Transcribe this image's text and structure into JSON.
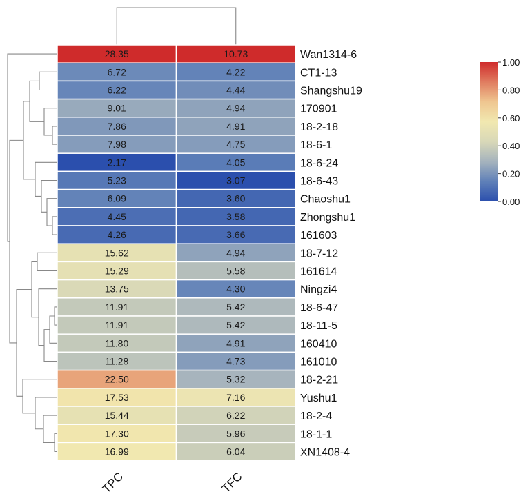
{
  "chart_data": {
    "type": "heatmap",
    "columns": [
      "TPC",
      "TFC"
    ],
    "rows": [
      {
        "name": "Wan1314-6",
        "values": [
          28.35,
          10.73
        ],
        "display": [
          "28.35",
          "10.73"
        ],
        "scaled": [
          1.0,
          1.0
        ]
      },
      {
        "name": "CT1-13",
        "values": [
          6.72,
          4.22
        ],
        "display": [
          "6.72",
          "4.22"
        ],
        "scaled": [
          0.17,
          0.15
        ]
      },
      {
        "name": "Shangshu19",
        "values": [
          6.22,
          4.44
        ],
        "display": [
          "6.22",
          "4.44"
        ],
        "scaled": [
          0.16,
          0.18
        ]
      },
      {
        "name": "170901",
        "values": [
          9.01,
          4.94
        ],
        "display": [
          "9.01",
          "4.94"
        ],
        "scaled": [
          0.26,
          0.24
        ]
      },
      {
        "name": "18-2-18",
        "values": [
          7.86,
          4.91
        ],
        "display": [
          "7.86",
          "4.91"
        ],
        "scaled": [
          0.21,
          0.24
        ]
      },
      {
        "name": "18-6-1",
        "values": [
          7.98,
          4.75
        ],
        "display": [
          "7.98",
          "4.75"
        ],
        "scaled": [
          0.22,
          0.22
        ]
      },
      {
        "name": "18-6-24",
        "values": [
          2.17,
          4.05
        ],
        "display": [
          "2.17",
          "4.05"
        ],
        "scaled": [
          0.0,
          0.13
        ]
      },
      {
        "name": "18-6-43",
        "values": [
          5.23,
          3.07
        ],
        "display": [
          "5.23",
          "3.07"
        ],
        "scaled": [
          0.12,
          0.0
        ]
      },
      {
        "name": "Chaoshu1",
        "values": [
          6.09,
          3.6
        ],
        "display": [
          "6.09",
          "3.60"
        ],
        "scaled": [
          0.15,
          0.07
        ]
      },
      {
        "name": "Zhongshu1",
        "values": [
          4.45,
          3.58
        ],
        "display": [
          "4.45",
          "3.58"
        ],
        "scaled": [
          0.09,
          0.07
        ]
      },
      {
        "name": "161603",
        "values": [
          4.26,
          3.66
        ],
        "display": [
          "4.26",
          "3.66"
        ],
        "scaled": [
          0.08,
          0.08
        ]
      },
      {
        "name": "18-7-12",
        "values": [
          15.62,
          4.94
        ],
        "display": [
          "15.62",
          "4.94"
        ],
        "scaled": [
          0.51,
          0.24
        ]
      },
      {
        "name": "161614",
        "values": [
          15.29,
          5.58
        ],
        "display": [
          "15.29",
          "5.58"
        ],
        "scaled": [
          0.5,
          0.33
        ]
      },
      {
        "name": "Ningzi4",
        "values": [
          13.75,
          4.3
        ],
        "display": [
          "13.75",
          "4.30"
        ],
        "scaled": [
          0.44,
          0.16
        ]
      },
      {
        "name": "18-6-47",
        "values": [
          11.91,
          5.42
        ],
        "display": [
          "11.91",
          "5.42"
        ],
        "scaled": [
          0.37,
          0.31
        ]
      },
      {
        "name": "18-11-5",
        "values": [
          11.91,
          5.42
        ],
        "display": [
          "11.91",
          "5.42"
        ],
        "scaled": [
          0.37,
          0.31
        ]
      },
      {
        "name": "160410",
        "values": [
          11.8,
          4.91
        ],
        "display": [
          "11.80",
          "4.91"
        ],
        "scaled": [
          0.37,
          0.24
        ]
      },
      {
        "name": "161010",
        "values": [
          11.28,
          4.73
        ],
        "display": [
          "11.28",
          "4.73"
        ],
        "scaled": [
          0.35,
          0.22
        ]
      },
      {
        "name": "18-2-21",
        "values": [
          22.5,
          5.32
        ],
        "display": [
          "22.50",
          "5.32"
        ],
        "scaled": [
          0.78,
          0.29
        ]
      },
      {
        "name": "Yushu1",
        "values": [
          17.53,
          7.16
        ],
        "display": [
          "17.53",
          "7.16"
        ],
        "scaled": [
          0.59,
          0.54
        ]
      },
      {
        "name": "18-2-4",
        "values": [
          15.44,
          6.22
        ],
        "display": [
          "15.44",
          "6.22"
        ],
        "scaled": [
          0.51,
          0.41
        ]
      },
      {
        "name": "18-1-1",
        "values": [
          17.3,
          5.96
        ],
        "display": [
          "17.30",
          "5.96"
        ],
        "scaled": [
          0.58,
          0.38
        ]
      },
      {
        "name": "XN1408-4",
        "values": [
          16.99,
          6.04
        ],
        "display": [
          "16.99",
          "6.04"
        ],
        "scaled": [
          0.57,
          0.39
        ]
      }
    ],
    "colorbar": {
      "range": [
        0,
        1
      ],
      "ticks": [
        "1.00",
        "0.80",
        "0.60",
        "0.40",
        "0.20",
        "0.00"
      ],
      "tick_values": [
        1.0,
        0.8,
        0.6,
        0.4,
        0.2,
        0.0
      ],
      "colors": [
        "#2b4fad",
        "#5f80b8",
        "#a5b3bd",
        "#d8d8b8",
        "#f1e8b0",
        "#efc690",
        "#e07c60",
        "#cf2b2b"
      ]
    },
    "dendrogram_rows": true,
    "dendrogram_columns": true,
    "title": "",
    "xlabel": "",
    "ylabel": ""
  }
}
